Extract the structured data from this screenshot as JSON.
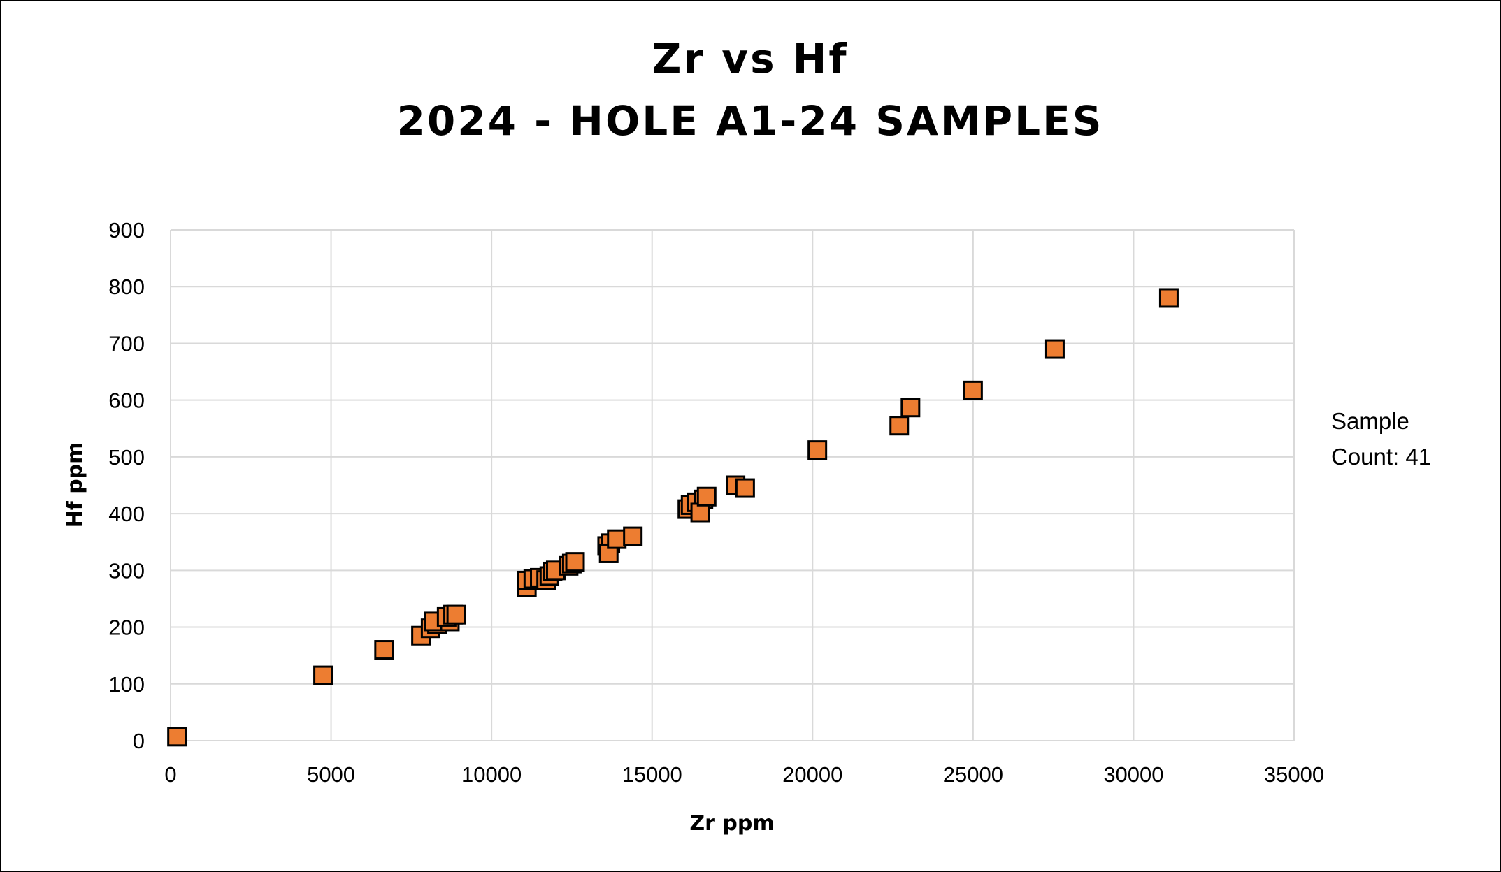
{
  "chart_data": {
    "type": "scatter",
    "title": [
      "Zr vs Hf",
      "2024 - HOLE A1-24 SAMPLES"
    ],
    "xlabel": "Zr ppm",
    "ylabel": "Hf  ppm",
    "xlim": [
      0,
      35000
    ],
    "ylim": [
      0,
      900
    ],
    "xticks": [
      0,
      5000,
      10000,
      15000,
      20000,
      25000,
      30000,
      35000
    ],
    "yticks": [
      0,
      100,
      200,
      300,
      400,
      500,
      600,
      700,
      800,
      900
    ],
    "grid": true,
    "marker": "square",
    "marker_color": "#ED7D31",
    "marker_edge_color": "#000000",
    "annotation": [
      "Sample",
      "Count:  41"
    ],
    "points": [
      [
        200,
        7
      ],
      [
        4750,
        115
      ],
      [
        6650,
        160
      ],
      [
        7800,
        185
      ],
      [
        8100,
        198
      ],
      [
        8300,
        205
      ],
      [
        8200,
        210
      ],
      [
        8700,
        210
      ],
      [
        8600,
        218
      ],
      [
        8800,
        222
      ],
      [
        8900,
        222
      ],
      [
        11100,
        270
      ],
      [
        11100,
        282
      ],
      [
        11300,
        285
      ],
      [
        11500,
        287
      ],
      [
        11700,
        283
      ],
      [
        11800,
        290
      ],
      [
        11900,
        298
      ],
      [
        12000,
        300
      ],
      [
        12400,
        308
      ],
      [
        12500,
        312
      ],
      [
        12600,
        315
      ],
      [
        13600,
        343
      ],
      [
        13700,
        348
      ],
      [
        13650,
        330
      ],
      [
        13900,
        355
      ],
      [
        14400,
        360
      ],
      [
        16100,
        408
      ],
      [
        16200,
        415
      ],
      [
        16400,
        420
      ],
      [
        16600,
        425
      ],
      [
        16500,
        402
      ],
      [
        16700,
        430
      ],
      [
        17600,
        450
      ],
      [
        17900,
        445
      ],
      [
        20150,
        512
      ],
      [
        22700,
        555
      ],
      [
        23050,
        587
      ],
      [
        25000,
        617
      ],
      [
        27550,
        690
      ],
      [
        31100,
        780
      ]
    ]
  }
}
